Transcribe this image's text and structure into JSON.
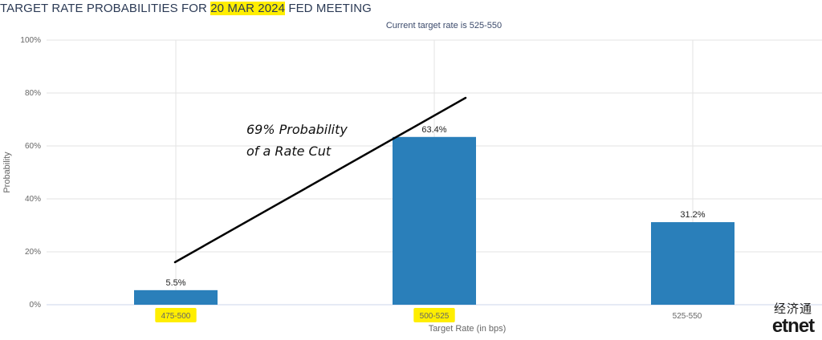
{
  "header": {
    "title_prefix": "TARGET RATE PROBABILITIES FOR ",
    "title_date": "20 MAR 2024",
    "title_suffix": " FED MEETING",
    "subtitle": "Current target rate is 525-550"
  },
  "annotation": {
    "line1": "69% Probability",
    "line2": "of a Rate Cut"
  },
  "logo": {
    "cn": "经济通",
    "en": "etnet"
  },
  "colors": {
    "bar": "#2a7fba",
    "highlight": "#ffee00",
    "grid": "#e3e3e3"
  },
  "chart_data": {
    "type": "bar",
    "categories": [
      "475-500",
      "500-525",
      "525-550"
    ],
    "highlighted_categories": [
      "475-500",
      "500-525"
    ],
    "values": [
      5.5,
      63.4,
      31.2
    ],
    "value_labels": [
      "5.5%",
      "63.4%",
      "31.2%"
    ],
    "xlabel": "Target Rate (in bps)",
    "ylabel": "Probability",
    "ylim": [
      0,
      100
    ],
    "yticks": [
      "0%",
      "20%",
      "40%",
      "60%",
      "80%",
      "100%"
    ],
    "grid": true,
    "legend": "none"
  }
}
